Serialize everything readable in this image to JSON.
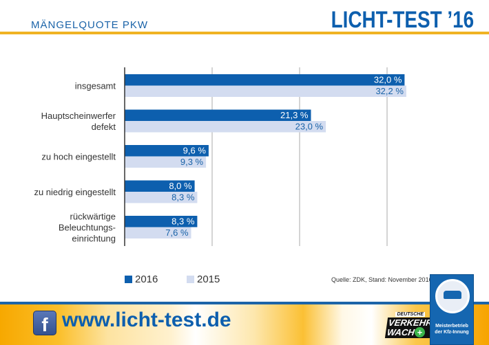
{
  "header": {
    "subtitle": "MÄNGELQUOTE PKW",
    "brand": "LICHT-TEST ’16"
  },
  "colors": {
    "series_2016": "#0d5fae",
    "series_2015": "#d3dcf0",
    "accent_yellow": "#f0b323",
    "label_2015_text": "#1a63a8"
  },
  "chart_data": {
    "type": "bar",
    "orientation": "horizontal",
    "title": "MÄNGELQUOTE PKW",
    "xlabel": "",
    "ylabel": "",
    "categories": [
      "insgesamt",
      "Hauptscheinwerfer defekt",
      "zu hoch eingestellt",
      "zu niedrig eingestellt",
      "rückwärtige Beleuchtungs-einrichtung"
    ],
    "category_lines": [
      [
        "insgesamt"
      ],
      [
        "Hauptscheinwerfer",
        "defekt"
      ],
      [
        "zu hoch eingestellt"
      ],
      [
        "zu niedrig eingestellt"
      ],
      [
        "rückwärtige",
        "Beleuchtungs-",
        "einrichtung"
      ]
    ],
    "series": [
      {
        "name": "2016",
        "values": [
          32.0,
          21.3,
          9.6,
          8.0,
          8.3
        ],
        "labels": [
          "32,0 %",
          "21,3 %",
          "9,6 %",
          "8,0 %",
          "8,3 %"
        ]
      },
      {
        "name": "2015",
        "values": [
          32.2,
          23.0,
          9.3,
          8.3,
          7.6
        ],
        "labels": [
          "32,2 %",
          "23,0 %",
          "9,3 %",
          "8,3 %",
          "7,6 %"
        ]
      }
    ],
    "xlim": [
      0,
      40
    ],
    "gridlines": [
      10,
      20,
      30
    ],
    "grid": true,
    "legend": "bottom-left",
    "source": "Quelle: ZDK, Stand: November 2016"
  },
  "legend": {
    "items": [
      {
        "label": "2016"
      },
      {
        "label": "2015"
      }
    ]
  },
  "footer": {
    "url": "www.licht-test.de",
    "facebook_icon": "facebook-icon",
    "dvw_small": "DEUTSCHE",
    "dvw_line1": "VERKEHRS",
    "dvw_line2": "WACHT",
    "badge_line1": "Meisterbetrieb",
    "badge_line2": "der Kfz-Innung"
  }
}
